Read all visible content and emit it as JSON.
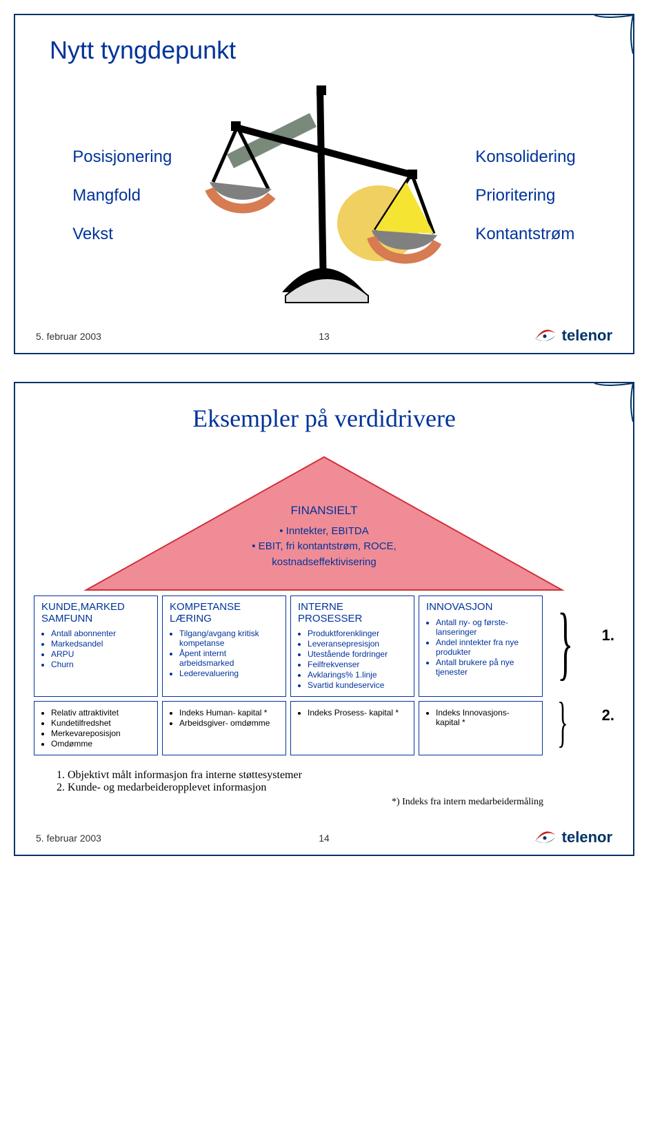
{
  "footer_date": "5. februar 2003",
  "slide1": {
    "title": "Nytt tyngdepunkt",
    "left": [
      "Posisjonering",
      "Mangfold",
      "Vekst"
    ],
    "right": [
      "Konsolidering",
      "Prioritering",
      "Kontantstrøm"
    ],
    "page": "13"
  },
  "slide2": {
    "title": "Eksempler på verdidrivere",
    "page": "14",
    "triangle": {
      "header": "FINANSIELT",
      "line1": "• Inntekter, EBITDA",
      "line2": "• EBIT, fri kontantstrøm, ROCE,",
      "line3": "kostnadseffektivisering",
      "fill": "#f08c96",
      "stroke": "#d0303a"
    },
    "row1": [
      {
        "head": "KUNDE,MARKED SAMFUNN",
        "items": [
          "Antall abonnenter",
          "Markedsandel",
          "ARPU",
          "Churn"
        ]
      },
      {
        "head": "KOMPETANSE LÆRING",
        "items": [
          "Tilgang/avgang kritisk kompetanse",
          "Åpent internt arbeidsmarked",
          "Lederevaluering"
        ]
      },
      {
        "head": "INTERNE PROSESSER",
        "items": [
          "Produktforenklinger",
          "Leveransepresisjon",
          "Utestående  fordringer",
          "Feilfrekvenser",
          "Avklarings% 1.linje",
          "Svartid kundeservice"
        ]
      },
      {
        "head": "INNOVASJON",
        "items": [
          "Antall ny- og første- lanseringer",
          "Andel inntekter fra nye produkter",
          "Antall brukere på nye tjenester"
        ]
      }
    ],
    "row2": [
      {
        "items": [
          "Relativ attraktivitet",
          "Kundetilfredshet",
          "Merkevareposisjon",
          "Omdømme"
        ]
      },
      {
        "items": [
          "Indeks Human- kapital *",
          "Arbeidsgiver- omdømme"
        ]
      },
      {
        "items": [
          "Indeks Prosess- kapital *"
        ]
      },
      {
        "items": [
          "Indeks Innovasjons- kapital *"
        ]
      }
    ],
    "side": {
      "one": "1.",
      "two": "2."
    },
    "note1": "1.    Objektivt målt informasjon fra interne støttesystemer",
    "note2": "2.    Kunde- og medarbeideropplevet informasjon",
    "starnote": "*) Indeks fra intern medarbeidermåling"
  },
  "logo_text": "telenor"
}
